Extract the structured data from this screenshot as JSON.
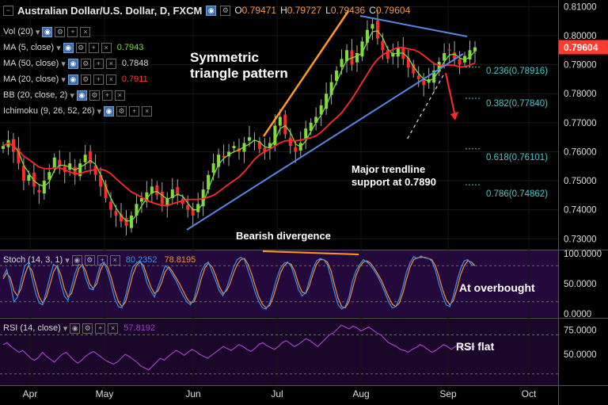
{
  "header": {
    "symbol_title": "Australian Dollar/U.S. Dollar, D, FXCM",
    "ohlc": [
      {
        "k": "O",
        "v": "0.79471"
      },
      {
        "k": "H",
        "v": "0.79727"
      },
      {
        "k": "L",
        "v": "0.79436"
      },
      {
        "k": "C",
        "v": "0.79604"
      }
    ]
  },
  "indicators": [
    {
      "id": "vol",
      "label": "Vol (20)",
      "value": "",
      "color": "#cccccc"
    },
    {
      "id": "ma5",
      "label": "MA (5, close)",
      "value": "0.7943",
      "color": "#7fdc3a"
    },
    {
      "id": "ma50",
      "label": "MA (50, close)",
      "value": "0.7848",
      "color": "#d8d8d8"
    },
    {
      "id": "ma20",
      "label": "MA (20, close)",
      "value": "0.7911",
      "color": "#ff3b30"
    },
    {
      "id": "bb",
      "label": "BB (20, close, 2)",
      "value": "",
      "color": "#cccccc"
    },
    {
      "id": "ichimoku",
      "label": "Ichimoku (9, 26, 52, 26)",
      "value": "",
      "color": "#cccccc"
    }
  ],
  "annotations": {
    "pattern": [
      "Symmetric",
      "triangle pattern"
    ],
    "support": [
      "Major trendline",
      "support at 0.7890"
    ],
    "divergence": "Bearish divergence",
    "overbought": "At overbought",
    "rsi_flat": "RSI flat"
  },
  "fib_levels": [
    {
      "label": "0.236(0.78916)",
      "value": 0.78916
    },
    {
      "label": "0.382(0.77840)",
      "value": 0.7784
    },
    {
      "label": "0.618(0.76101)",
      "value": 0.76101
    },
    {
      "label": "0.786(0.74862)",
      "value": 0.74862
    }
  ],
  "price_axis": {
    "ticks": [
      {
        "label": "0.81000",
        "value": 0.81
      },
      {
        "label": "0.80000",
        "value": 0.8
      },
      {
        "label": "0.79000",
        "value": 0.79
      },
      {
        "label": "0.78000",
        "value": 0.78
      },
      {
        "label": "0.77000",
        "value": 0.77
      },
      {
        "label": "0.76000",
        "value": 0.76
      },
      {
        "label": "0.75000",
        "value": 0.75
      },
      {
        "label": "0.74000",
        "value": 0.74
      },
      {
        "label": "0.73000",
        "value": 0.73
      }
    ],
    "current_price_label": "0.79604",
    "current_price": 0.79604,
    "range": [
      0.7268,
      0.8112
    ]
  },
  "stoch": {
    "label": "Stoch (14, 3, 1)",
    "k_value": "80.2352",
    "d_value": "78.8195",
    "ticks": [
      {
        "label": "100.0000",
        "value": 100
      },
      {
        "label": "50.0000",
        "value": 50
      },
      {
        "label": "0.0000",
        "value": 0
      }
    ],
    "bands": [
      20,
      80
    ],
    "k_color": "#3a8fe8",
    "d_color": "#f0913a",
    "k_series": [
      62,
      74,
      50,
      20,
      28,
      55,
      80,
      85,
      60,
      35,
      18,
      15,
      38,
      62,
      82,
      78,
      50,
      30,
      22,
      45,
      68,
      82,
      80,
      58,
      42,
      40,
      60,
      82,
      86,
      70,
      48,
      25,
      12,
      10,
      30,
      55,
      78,
      84,
      88,
      72,
      50,
      38,
      28,
      45,
      62,
      80,
      75,
      65,
      55,
      42,
      30,
      20,
      15,
      25,
      48,
      70,
      82,
      86,
      70,
      55,
      38,
      30,
      42,
      60,
      78,
      90,
      94,
      90,
      72,
      55,
      35,
      20,
      10,
      8,
      18,
      38,
      60,
      76,
      84,
      86,
      78,
      60,
      40,
      30,
      35,
      55,
      75,
      88,
      92,
      90,
      82,
      60,
      35,
      15,
      8,
      12,
      28,
      55,
      72,
      82,
      90,
      86,
      80,
      72,
      62,
      50,
      35,
      20,
      10,
      12,
      25,
      45,
      70,
      85,
      95,
      92,
      96,
      93,
      92,
      88,
      72,
      50,
      30,
      15,
      12,
      30,
      55,
      75,
      88,
      90,
      82,
      80
    ],
    "d_series": [
      58,
      68,
      60,
      38,
      30,
      42,
      65,
      80,
      72,
      50,
      28,
      18,
      28,
      48,
      70,
      80,
      65,
      42,
      28,
      34,
      55,
      75,
      82,
      70,
      50,
      42,
      50,
      72,
      84,
      78,
      60,
      38,
      20,
      12,
      20,
      42,
      65,
      80,
      86,
      80,
      62,
      45,
      34,
      38,
      52,
      70,
      78,
      70,
      60,
      50,
      38,
      26,
      18,
      20,
      36,
      58,
      76,
      84,
      78,
      64,
      46,
      34,
      38,
      50,
      68,
      82,
      90,
      92,
      82,
      66,
      46,
      28,
      16,
      10,
      14,
      28,
      48,
      68,
      80,
      85,
      82,
      70,
      50,
      36,
      34,
      46,
      66,
      82,
      90,
      90,
      86,
      72,
      48,
      26,
      12,
      10,
      20,
      42,
      64,
      78,
      86,
      88,
      84,
      76,
      66,
      56,
      42,
      28,
      16,
      12,
      18,
      35,
      58,
      78,
      90,
      93,
      94,
      94,
      92,
      90,
      80,
      62,
      40,
      24,
      15,
      22,
      42,
      65,
      80,
      88,
      86,
      80
    ]
  },
  "rsi": {
    "label": "RSI (14, close)",
    "value": "57.8192",
    "ticks": [
      {
        "label": "75.0000",
        "value": 75
      },
      {
        "label": "50.0000",
        "value": 50
      }
    ],
    "bands": [
      70,
      30
    ],
    "color": "#a042c8",
    "series": [
      60,
      62,
      58,
      55,
      52,
      54,
      50,
      46,
      44,
      47,
      52,
      48,
      45,
      42,
      46,
      50,
      52,
      48,
      44,
      41,
      44,
      48,
      51,
      53,
      50,
      47,
      44,
      42,
      40,
      42,
      46,
      50,
      48,
      45,
      42,
      38,
      36,
      34,
      38,
      42,
      46,
      44,
      48,
      51,
      54,
      52,
      49,
      52,
      55,
      53,
      50,
      48,
      46,
      49,
      52,
      55,
      58,
      56,
      54,
      57,
      60,
      58,
      55,
      53,
      56,
      60,
      62,
      59,
      57,
      55,
      58,
      62,
      64,
      61,
      58,
      60,
      63,
      66,
      64,
      61,
      58,
      62,
      66,
      70,
      72,
      76,
      80,
      78,
      76,
      79,
      77,
      74,
      76,
      78,
      75,
      72,
      70,
      66,
      62,
      60,
      58,
      55,
      54,
      52,
      55,
      57,
      60,
      58,
      55,
      52,
      54,
      57,
      60,
      58,
      55,
      58,
      60,
      57,
      55,
      58,
      57.8
    ]
  },
  "x_axis": {
    "labels": [
      "Apr",
      "May",
      "Jun",
      "Jul",
      "Aug",
      "Sep",
      "Oct"
    ]
  },
  "colors": {
    "ma5": "#7fdc3a",
    "ma20": "#ff2a2a",
    "up_candle": "#7fdc3a",
    "down_candle": "#ff2a2a",
    "triangle_lines": "#5b86e0",
    "rally_line": "#ff9a1e",
    "divergence_line": "#ff9a1e",
    "price_tag": "#ff3b30",
    "fib_text": "#48c8c8",
    "panel_stoch": "#240a3c",
    "panel_rsi": "#1a0628"
  },
  "chart_data": {
    "type": "candlestick",
    "title": "Australian Dollar/U.S. Dollar, D, FXCM",
    "ylim": [
      0.7268,
      0.8112
    ],
    "x_labels": [
      "Apr",
      "May",
      "Jun",
      "Jul",
      "Aug",
      "Sep",
      "Oct"
    ],
    "close_path": [
      0.762,
      0.764,
      0.76,
      0.756,
      0.75,
      0.752,
      0.748,
      0.746,
      0.75,
      0.753,
      0.758,
      0.755,
      0.753,
      0.756,
      0.752,
      0.756,
      0.759,
      0.756,
      0.752,
      0.748,
      0.744,
      0.74,
      0.738,
      0.736,
      0.7345,
      0.738,
      0.742,
      0.744,
      0.746,
      0.748,
      0.745,
      0.742,
      0.744,
      0.747,
      0.745,
      0.742,
      0.74,
      0.738,
      0.742,
      0.747,
      0.752,
      0.756,
      0.759,
      0.758,
      0.76,
      0.762,
      0.76,
      0.763,
      0.765,
      0.764,
      0.761,
      0.76,
      0.763,
      0.769,
      0.772,
      0.766,
      0.762,
      0.76,
      0.763,
      0.768,
      0.77,
      0.772,
      0.776,
      0.78,
      0.784,
      0.788,
      0.792,
      0.795,
      0.79,
      0.794,
      0.798,
      0.802,
      0.804,
      0.799,
      0.795,
      0.792,
      0.794,
      0.796,
      0.792,
      0.789,
      0.787,
      0.785,
      0.783,
      0.785,
      0.788,
      0.791,
      0.794,
      0.795,
      0.792,
      0.79,
      0.793,
      0.795,
      0.796
    ]
  }
}
